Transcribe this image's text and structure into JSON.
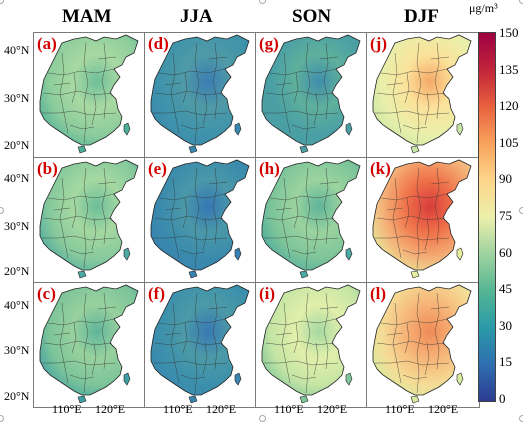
{
  "seasons": [
    "MAM",
    "JJA",
    "SON",
    "DJF"
  ],
  "panel_labels": [
    [
      "(a)",
      "(d)",
      "(g)",
      "(j)"
    ],
    [
      "(b)",
      "(e)",
      "(h)",
      "(k)"
    ],
    [
      "(c)",
      "(f)",
      "(i)",
      "(l)"
    ]
  ],
  "lat_labels": [
    "40°N",
    "30°N",
    "20°N"
  ],
  "lon_labels": [
    "110°E",
    "120°E"
  ],
  "colorbar": {
    "unit": "μg/m³",
    "min": 0,
    "max": 150,
    "ticks": [
      "150",
      "135",
      "120",
      "105",
      "90",
      "75",
      "60",
      "45",
      "30",
      "15",
      "0"
    ],
    "colormap": [
      "#2c3b91",
      "#2e6fb0",
      "#2a9aa8",
      "#55b693",
      "#9fd3a0",
      "#ecf0ab",
      "#fdd68a",
      "#f9a25d",
      "#e8613e",
      "#c2243a",
      "#9e0142"
    ]
  },
  "panel_fill": {
    "a": [
      "#8ccc9c",
      "#a8d9a2",
      "#6fbf9a",
      "#4fb099"
    ],
    "b": [
      "#86c99c",
      "#a5d8a1",
      "#6dbe99",
      "#4aa9a0"
    ],
    "c": [
      "#7cc49a",
      "#98d19e",
      "#5fb59a",
      "#3f9fa4"
    ],
    "d": [
      "#3f93ab",
      "#4f9aa6",
      "#3a7eb2",
      "#3b88ae"
    ],
    "e": [
      "#3a8aad",
      "#4a98a8",
      "#3577b3",
      "#3781b1"
    ],
    "f": [
      "#3c90ac",
      "#4c9aa7",
      "#3779b3",
      "#3985b0"
    ],
    "g": [
      "#4a9fa5",
      "#5fb09c",
      "#3f8eac",
      "#4a9fa5"
    ],
    "h": [
      "#7cc49a",
      "#9bd39f",
      "#5fb59a",
      "#4aa9a0"
    ],
    "i": [
      "#c5e5a5",
      "#e1efaa",
      "#a6d9a3",
      "#7fc79b"
    ],
    "j": [
      "#e9efaa",
      "#fbe29a",
      "#f6a968",
      "#c8e7a6"
    ],
    "k": [
      "#f4b47a",
      "#f0724a",
      "#d83c3b",
      "#e8ef9f"
    ],
    "l": [
      "#f5dc96",
      "#f6b377",
      "#f08a56",
      "#d7ec9f"
    ]
  }
}
